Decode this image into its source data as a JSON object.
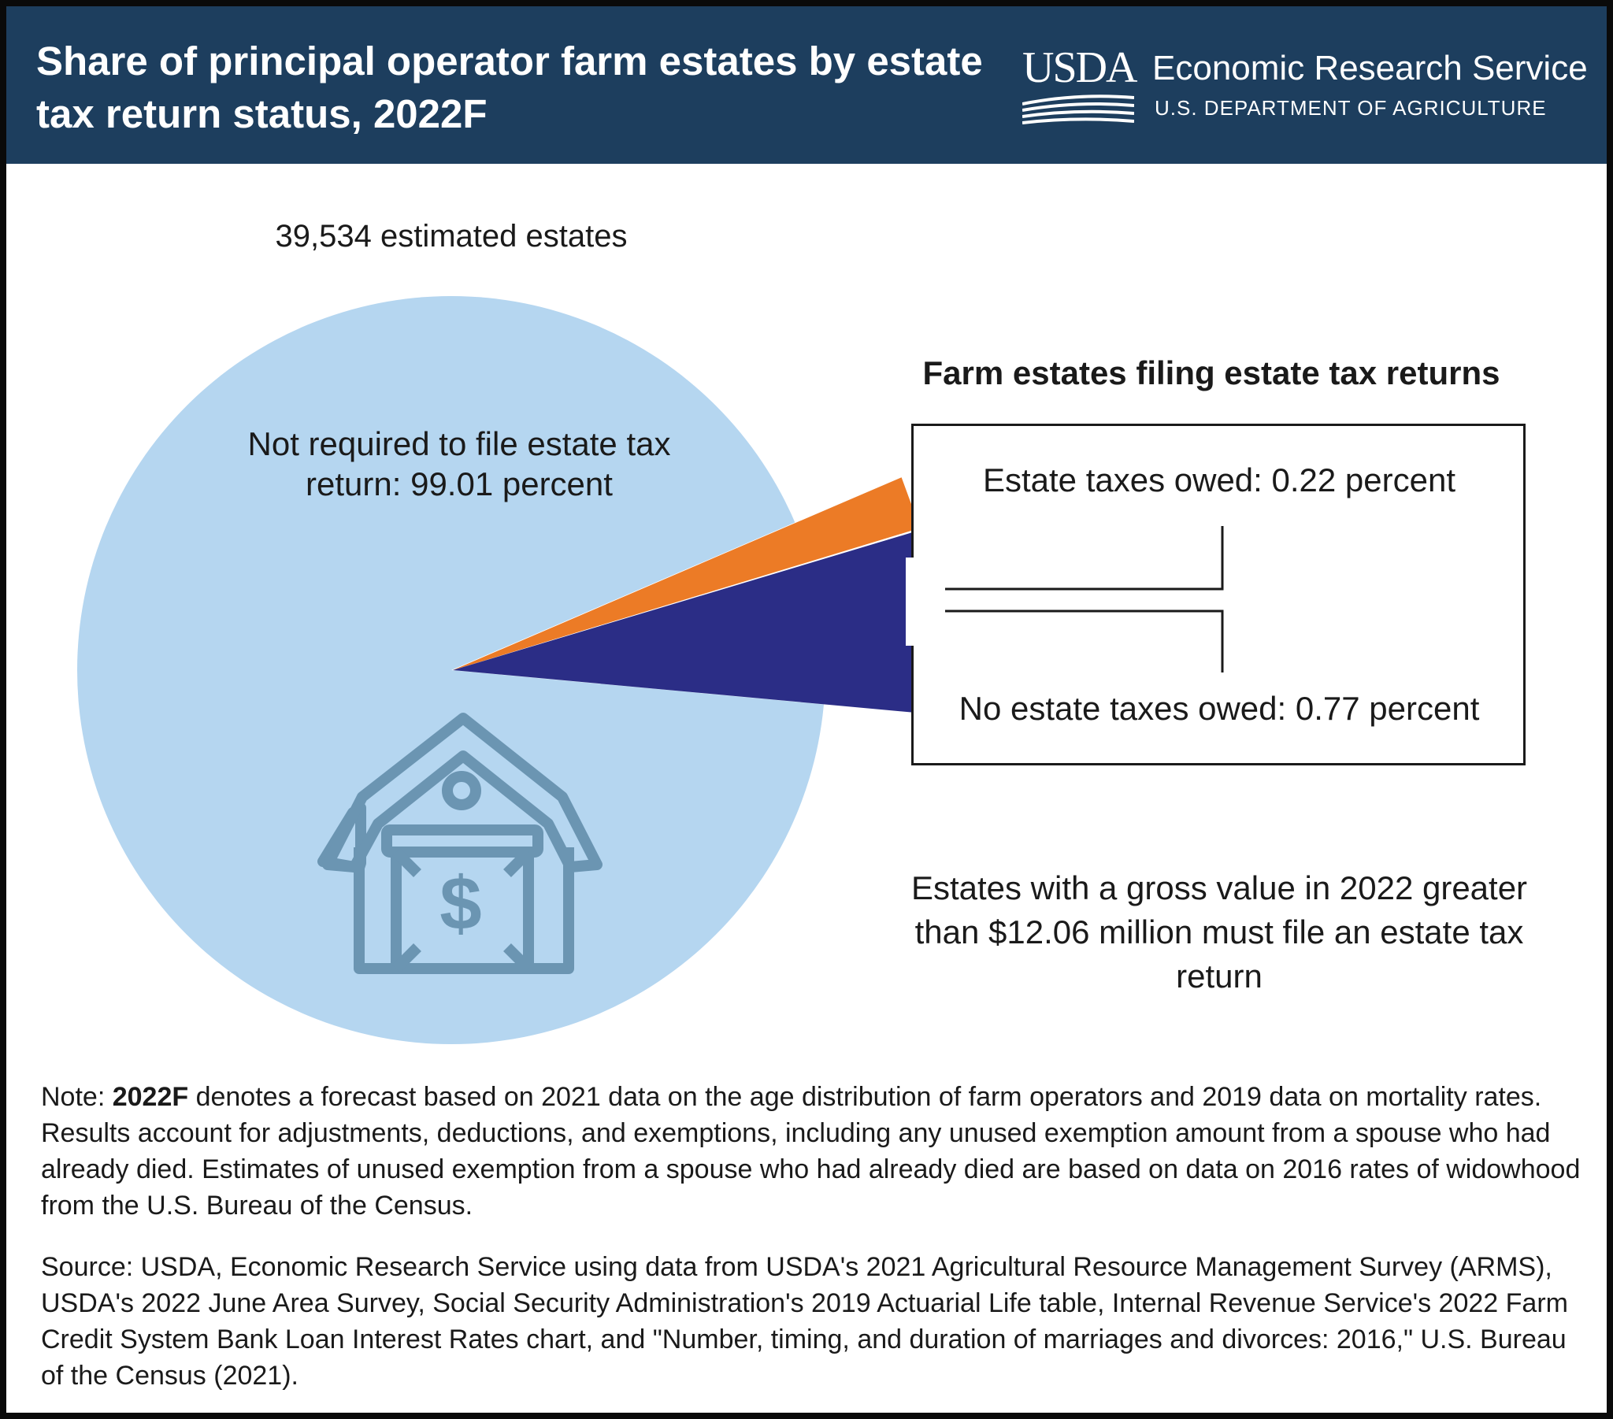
{
  "header": {
    "title": "Share of principal operator farm estates by estate tax return status, 2022F",
    "logo_text": "USDA",
    "agency_name": "Economic Research Service",
    "department": "U.S. DEPARTMENT OF AGRICULTURE"
  },
  "chart_data": {
    "type": "pie",
    "subtitle": "39,534 estimated estates",
    "slices": [
      {
        "label": "Not required to file estate tax return: 99.01 percent",
        "value": 99.01,
        "color": "#b5d6f0"
      },
      {
        "label": "Estate taxes owed: 0.22 percent",
        "value": 0.22,
        "color": "#ec7b26"
      },
      {
        "label": "No estate taxes owed: 0.77 percent",
        "value": 0.77,
        "color": "#2b2d86"
      }
    ],
    "group_title": "Farm estates filing estate tax returns",
    "annotation": "Estates with a gross value in 2022 greater than $12.06 million must file an estate tax return"
  },
  "icons": {
    "center": "barn-dollar-icon",
    "logo": "usda-logo-icon"
  },
  "colors": {
    "header_bg": "#1d3e5e",
    "icon": "#6b95b2"
  },
  "footer": {
    "note_prefix": "Note: ",
    "note_bold": "2022F",
    "note_text": " denotes a forecast based on 2021 data on the age distribution of farm operators and 2019 data on mortality rates. Results account for adjustments, deductions, and exemptions, including any unused exemption amount from a spouse who had already died. Estimates of unused exemption from a spouse who had already died are based on data on 2016 rates of widowhood from the U.S. Bureau of the Census.",
    "source": "Source: USDA, Economic Research Service using data from USDA's 2021 Agricultural Resource Management Survey (ARMS), USDA's 2022 June Area Survey, Social Security Administration's 2019 Actuarial Life table, Internal Revenue Service's 2022 Farm Credit System Bank Loan Interest Rates chart, and \"Number, timing, and duration of marriages and divorces: 2016,\" U.S. Bureau of the Census (2021)."
  }
}
